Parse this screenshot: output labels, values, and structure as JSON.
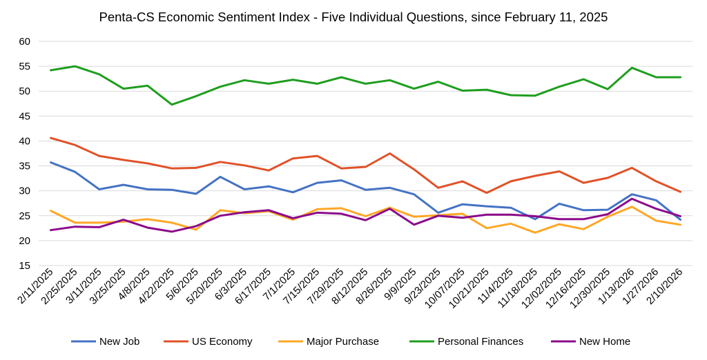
{
  "chart_data": {
    "type": "line",
    "title": "Penta-CS Economic Sentiment Index - Five Individual Questions, since February 11, 2025",
    "xlabel": "",
    "ylabel": "",
    "ylim": [
      15,
      60
    ],
    "yticks": [
      15,
      20,
      25,
      30,
      35,
      40,
      45,
      50,
      55,
      60
    ],
    "grid": true,
    "legend_position": "bottom",
    "categories": [
      "2/11/2025",
      "2/25/2025",
      "3/11/2025",
      "3/25/2025",
      "4/8/2025",
      "4/22/2025",
      "5/6/2025",
      "5/20/2025",
      "6/3/2025",
      "6/17/2025",
      "7/1/2025",
      "7/15/2025",
      "7/29/2025",
      "8/12/2025",
      "8/26/2025",
      "9/9/2025",
      "9/23/2025",
      "10/07/2025",
      "10/21/2025",
      "11/4/2025",
      "11/18/2025",
      "12/02/2025",
      "12/16/2025",
      "12/30/2025",
      "1/13/2026",
      "1/27/2026",
      "2/10/2026"
    ],
    "series": [
      {
        "name": "New Job",
        "color": "#4472C4",
        "values": [
          35.7,
          33.8,
          30.3,
          31.2,
          30.3,
          30.2,
          29.4,
          32.8,
          30.3,
          30.9,
          29.7,
          31.6,
          32.1,
          30.2,
          30.6,
          29.3,
          25.6,
          27.3,
          26.9,
          26.6,
          24.3,
          27.4,
          26.1,
          26.2,
          29.3,
          28.1,
          24.2
        ]
      },
      {
        "name": "US Economy",
        "color": "#E15128",
        "values": [
          40.6,
          39.2,
          37.0,
          36.2,
          35.5,
          34.5,
          34.6,
          35.8,
          35.1,
          34.1,
          36.5,
          37.0,
          34.5,
          34.8,
          37.5,
          34.3,
          30.6,
          31.9,
          29.6,
          31.9,
          33.0,
          33.9,
          31.6,
          32.6,
          34.6,
          31.9,
          29.8
        ]
      },
      {
        "name": "Major Purchase",
        "color": "#FFA726",
        "values": [
          26.0,
          23.6,
          23.6,
          23.8,
          24.3,
          23.6,
          22.2,
          26.1,
          25.5,
          25.9,
          24.2,
          26.3,
          26.5,
          24.9,
          26.6,
          24.8,
          25.1,
          25.4,
          22.5,
          23.4,
          21.6,
          23.3,
          22.3,
          24.8,
          26.8,
          24.0,
          23.2
        ]
      },
      {
        "name": "Personal Finances",
        "color": "#1E9E1E",
        "values": [
          54.2,
          55.0,
          53.4,
          50.5,
          51.1,
          47.3,
          49.0,
          50.9,
          52.2,
          51.5,
          52.3,
          51.5,
          52.8,
          51.5,
          52.2,
          50.5,
          51.9,
          50.1,
          50.3,
          49.2,
          49.1,
          50.9,
          52.4,
          50.4,
          54.7,
          52.8,
          52.8
        ]
      },
      {
        "name": "New Home",
        "color": "#8B0A8B",
        "values": [
          22.1,
          22.8,
          22.7,
          24.2,
          22.6,
          21.8,
          22.9,
          25.0,
          25.7,
          26.1,
          24.5,
          25.6,
          25.4,
          24.1,
          26.4,
          23.2,
          25.0,
          24.6,
          25.2,
          25.2,
          24.9,
          24.3,
          24.3,
          25.3,
          28.4,
          26.4,
          24.9
        ]
      }
    ]
  }
}
